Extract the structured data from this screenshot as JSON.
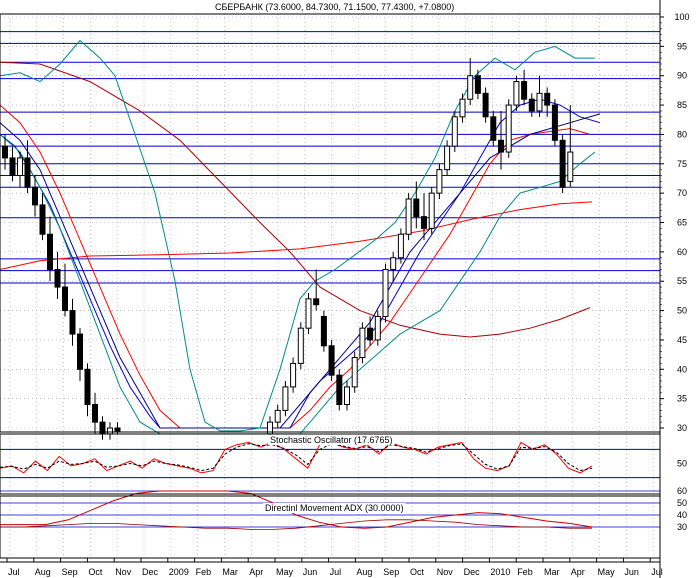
{
  "chart_data": {
    "type": "candlestick",
    "title": "СБЕРБАНК (73.6000, 84.7300, 71.1500, 77.4300, +7.0800)",
    "colors": {
      "price_line": "#0000cc",
      "ma_fast": "#ff0000",
      "ma_slow": "#aa0000",
      "bollinger": "#008a8a",
      "ma_blue": "#000088",
      "stoch": "#ff0000",
      "adx": "#cc0000"
    },
    "x_axis": {
      "labels": [
        "Jul",
        "Aug",
        "Sep",
        "Oct",
        "Nov",
        "Dec",
        "2009",
        "Feb",
        "Mar",
        "Apr",
        "May",
        "Jun",
        "Jul",
        "Aug",
        "Sep",
        "Oct",
        "Nov",
        "Dec",
        "2010",
        "Feb",
        "Mar",
        "Apr",
        "May",
        "Jun",
        "Jul"
      ]
    },
    "price_panel": {
      "ylim": [
        27,
        102
      ],
      "ticks": [
        30,
        35,
        40,
        45,
        50,
        55,
        60,
        65,
        70,
        75,
        80,
        85,
        90,
        95,
        100
      ],
      "horizontal_levels": [
        97.5,
        95.5,
        92.3,
        89.5,
        83.8,
        80.0,
        78.0,
        75.0,
        73.0,
        71.0,
        65.8,
        58.8,
        56.8,
        54.7
      ],
      "candles": [
        {
          "o": 78,
          "h": 80,
          "l": 74,
          "c": 76
        },
        {
          "o": 76,
          "h": 78,
          "l": 72,
          "c": 73
        },
        {
          "o": 73,
          "h": 77,
          "l": 71,
          "c": 76
        },
        {
          "o": 76,
          "h": 79,
          "l": 70,
          "c": 71
        },
        {
          "o": 71,
          "h": 73,
          "l": 66,
          "c": 68
        },
        {
          "o": 68,
          "h": 70,
          "l": 62,
          "c": 63
        },
        {
          "o": 63,
          "h": 66,
          "l": 55,
          "c": 57
        },
        {
          "o": 57,
          "h": 60,
          "l": 52,
          "c": 54
        },
        {
          "o": 54,
          "h": 58,
          "l": 49,
          "c": 50
        },
        {
          "o": 50,
          "h": 52,
          "l": 44,
          "c": 46
        },
        {
          "o": 46,
          "h": 47,
          "l": 38,
          "c": 40
        },
        {
          "o": 40,
          "h": 41,
          "l": 32,
          "c": 34
        },
        {
          "o": 34,
          "h": 36,
          "l": 29,
          "c": 31
        },
        {
          "o": 31,
          "h": 32,
          "l": 28,
          "c": 29
        },
        {
          "o": 29,
          "h": 31,
          "l": 28,
          "c": 30
        },
        {
          "o": 30,
          "h": 31,
          "l": 29,
          "c": 29.5
        },
        {
          "o": 29,
          "h": 32,
          "l": 28,
          "c": 31
        },
        {
          "o": 31,
          "h": 34,
          "l": 30,
          "c": 33
        },
        {
          "o": 33,
          "h": 38,
          "l": 32,
          "c": 37
        },
        {
          "o": 37,
          "h": 42,
          "l": 36,
          "c": 41
        },
        {
          "o": 41,
          "h": 48,
          "l": 40,
          "c": 47
        },
        {
          "o": 47,
          "h": 53,
          "l": 46,
          "c": 52
        },
        {
          "o": 52,
          "h": 57,
          "l": 50,
          "c": 51
        },
        {
          "o": 49,
          "h": 50,
          "l": 43,
          "c": 44
        },
        {
          "o": 44,
          "h": 45,
          "l": 38,
          "c": 39
        },
        {
          "o": 39,
          "h": 40,
          "l": 33,
          "c": 34
        },
        {
          "o": 34,
          "h": 38,
          "l": 33,
          "c": 37
        },
        {
          "o": 37,
          "h": 43,
          "l": 36,
          "c": 42
        },
        {
          "o": 42,
          "h": 48,
          "l": 41,
          "c": 47
        },
        {
          "o": 47,
          "h": 49,
          "l": 44,
          "c": 45
        },
        {
          "o": 45,
          "h": 50,
          "l": 44,
          "c": 49
        },
        {
          "o": 49,
          "h": 58,
          "l": 48,
          "c": 57
        },
        {
          "o": 57,
          "h": 60,
          "l": 55,
          "c": 59
        },
        {
          "o": 59,
          "h": 64,
          "l": 58,
          "c": 63
        },
        {
          "o": 63,
          "h": 70,
          "l": 62,
          "c": 69
        },
        {
          "o": 69,
          "h": 72,
          "l": 64,
          "c": 66
        },
        {
          "o": 66,
          "h": 70,
          "l": 62,
          "c": 64
        },
        {
          "o": 64,
          "h": 71,
          "l": 63,
          "c": 70
        },
        {
          "o": 70,
          "h": 75,
          "l": 69,
          "c": 74
        },
        {
          "o": 74,
          "h": 79,
          "l": 73,
          "c": 78
        },
        {
          "o": 78,
          "h": 84,
          "l": 77,
          "c": 83
        },
        {
          "o": 83,
          "h": 87,
          "l": 82,
          "c": 86
        },
        {
          "o": 86,
          "h": 93,
          "l": 85,
          "c": 90
        },
        {
          "o": 90,
          "h": 91,
          "l": 86,
          "c": 87
        },
        {
          "o": 87,
          "h": 88,
          "l": 82,
          "c": 83
        },
        {
          "o": 83,
          "h": 84,
          "l": 78,
          "c": 79
        },
        {
          "o": 79,
          "h": 84,
          "l": 74,
          "c": 77
        },
        {
          "o": 77,
          "h": 86,
          "l": 76,
          "c": 85
        },
        {
          "o": 85,
          "h": 90,
          "l": 84,
          "c": 89
        },
        {
          "o": 89,
          "h": 91,
          "l": 85,
          "c": 86
        },
        {
          "o": 86,
          "h": 87,
          "l": 83,
          "c": 84
        },
        {
          "o": 84,
          "h": 90,
          "l": 83,
          "c": 87
        },
        {
          "o": 87,
          "h": 88,
          "l": 83,
          "c": 85
        },
        {
          "o": 85,
          "h": 86,
          "l": 78,
          "c": 79
        },
        {
          "o": 79,
          "h": 80,
          "l": 70,
          "c": 71
        },
        {
          "o": 72,
          "h": 85,
          "l": 71,
          "c": 77
        }
      ]
    },
    "stochastic_panel": {
      "label": "Stochastic Oscillator (17.6765)",
      "ticks": [
        50
      ],
      "k": [
        40,
        45,
        30,
        55,
        35,
        65,
        45,
        50,
        60,
        35,
        45,
        55,
        40,
        60,
        50,
        45,
        40,
        30,
        35,
        80,
        90,
        95,
        85,
        95,
        80,
        60,
        40,
        90,
        95,
        85,
        80,
        90,
        70,
        95,
        85,
        80,
        70,
        85,
        90,
        95,
        60,
        40,
        35,
        45,
        95,
        80,
        90,
        70,
        40,
        30,
        45
      ],
      "d": [
        42,
        44,
        38,
        48,
        40,
        55,
        48,
        50,
        55,
        42,
        45,
        50,
        45,
        55,
        50,
        47,
        42,
        35,
        40,
        70,
        85,
        92,
        88,
        90,
        82,
        68,
        48,
        80,
        92,
        87,
        82,
        86,
        75,
        90,
        86,
        82,
        74,
        82,
        88,
        92,
        70,
        48,
        38,
        45,
        85,
        82,
        86,
        74,
        50,
        35,
        40
      ]
    },
    "adx_panel": {
      "label": "Directinl Movement ADX (30.0000)",
      "ticks": [
        30,
        40,
        50,
        60
      ],
      "adx": [
        32,
        32,
        32,
        36,
        44,
        52,
        58,
        60,
        60,
        60,
        60,
        58,
        50,
        40,
        34,
        30,
        29,
        30,
        34,
        38,
        40,
        42,
        41,
        38,
        35,
        33,
        30
      ],
      "minus": [
        30,
        30,
        31,
        32,
        33,
        33,
        32,
        31,
        30,
        29,
        29,
        28,
        28,
        29,
        31,
        33,
        35,
        36,
        36,
        35,
        34,
        32,
        31,
        30,
        30,
        29,
        29
      ]
    }
  }
}
